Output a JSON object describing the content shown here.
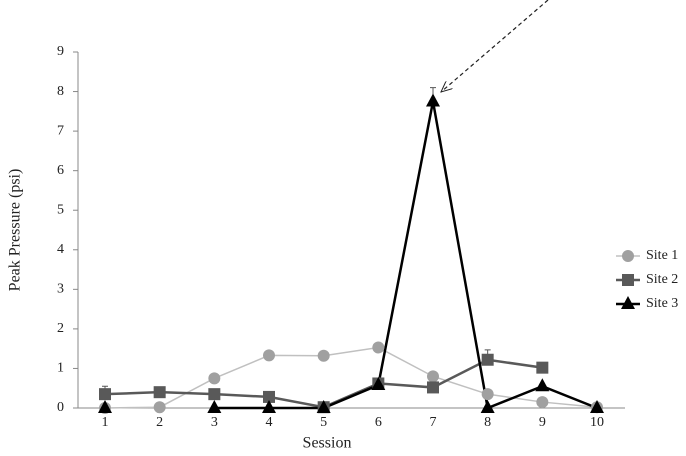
{
  "chart_data": {
    "type": "line",
    "x_label": "Session",
    "y_label": "Peak Pressure (psi)",
    "categories": [
      "1",
      "2",
      "3",
      "4",
      "5",
      "6",
      "7",
      "8",
      "9",
      "10"
    ],
    "ylim": [
      0,
      9
    ],
    "yticks": [
      0,
      1,
      2,
      3,
      4,
      5,
      6,
      7,
      8,
      9
    ],
    "legend": "right",
    "series": [
      {
        "name": "Site 1",
        "color": "#a0a0a0",
        "marker": "circle",
        "values": [
          0,
          0.02,
          0.75,
          1.33,
          1.32,
          1.53,
          0.8,
          0.35,
          0.15,
          0.02
        ]
      },
      {
        "name": "Site 2",
        "color": "#595959",
        "marker": "square",
        "values": [
          0.35,
          0.4,
          0.35,
          0.28,
          0.02,
          0.62,
          0.52,
          1.22,
          1.02,
          null
        ],
        "errors": [
          0.2,
          null,
          null,
          null,
          null,
          null,
          null,
          0.25,
          null,
          null
        ]
      },
      {
        "name": "Site 3",
        "color": "#000000",
        "marker": "triangle",
        "values": [
          0,
          null,
          0,
          0,
          0,
          0.58,
          7.75,
          0,
          0.55,
          0
        ],
        "errors": [
          null,
          null,
          null,
          null,
          null,
          null,
          0.35,
          null,
          null,
          null
        ]
      }
    ]
  }
}
